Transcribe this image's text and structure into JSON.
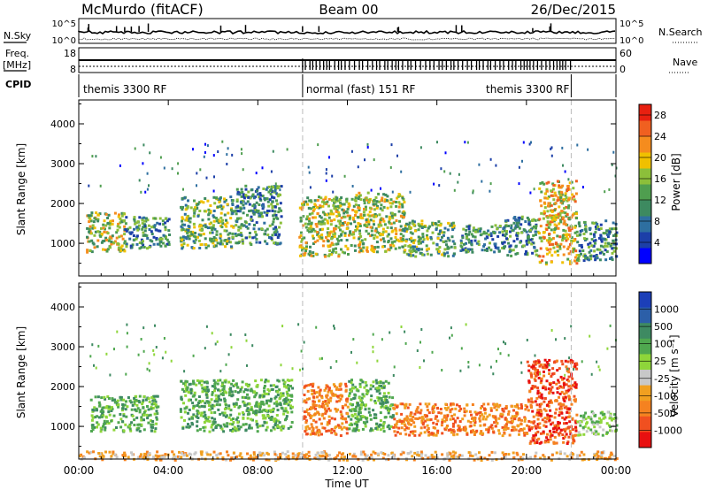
{
  "header": {
    "station": "McMurdo (fitACF)",
    "beam": "Beam 00",
    "date": "26/Dec/2015"
  },
  "side_labels": {
    "nsky": "N.Sky",
    "nsearch": "N.Search",
    "freq_line1": "Freq.",
    "freq_line2": "[MHz]",
    "nave": "Nave",
    "cpid": "CPID",
    "noise_tick_hi": "10^5",
    "noise_tick_lo": "10^0",
    "freq_tick_hi": "18",
    "freq_tick_lo": "8",
    "nave_tick_hi": "60",
    "nave_tick_lo": "0"
  },
  "cpid_segments": [
    {
      "label": "themis 3300 RF",
      "start_h": 0,
      "end_h": 10
    },
    {
      "label": "normal (fast) 151 RF",
      "start_h": 10,
      "end_h": 22
    },
    {
      "label": "themis 3300 RF",
      "start_h": 22,
      "end_h": 24
    }
  ],
  "colors": {
    "power_scale": [
      "#0000ff",
      "#1c3fa8",
      "#2e6fa0",
      "#3d8a60",
      "#4f9e4f",
      "#8cbf3a",
      "#f0c000",
      "#f58c1e",
      "#f06020",
      "#e82010"
    ],
    "velocity_scale": [
      "#1c3fb8",
      "#2c5fa8",
      "#3e8a62",
      "#4fa74f",
      "#8ed63a",
      "#c8c8c8",
      "#f0a020",
      "#f58220",
      "#f05020",
      "#e81010"
    ]
  },
  "chart_data": [
    {
      "type": "heatmap",
      "panel": "power",
      "xlabel": "",
      "ylabel": "Slant Range [km]",
      "x_ticks": [
        "00:00",
        "04:00",
        "08:00",
        "12:00",
        "16:00",
        "20:00",
        "00:00"
      ],
      "y_ticks": [
        1000,
        2000,
        3000,
        4000
      ],
      "xlim_hours": [
        0,
        24
      ],
      "ylim_km": [
        180,
        4600
      ],
      "colorbar": {
        "label": "Power [dB]",
        "ticks": [
          4,
          8,
          12,
          16,
          20,
          24,
          28
        ],
        "range": [
          0,
          30
        ]
      },
      "echo_regions": [
        {
          "t_start": 0.3,
          "t_end": 2.0,
          "r_low": 800,
          "r_high": 1800,
          "level": 16
        },
        {
          "t_start": 2.0,
          "t_end": 4.0,
          "r_low": 900,
          "r_high": 1700,
          "level": 11
        },
        {
          "t_start": 4.5,
          "t_end": 7.0,
          "r_low": 900,
          "r_high": 2200,
          "level": 13
        },
        {
          "t_start": 7.0,
          "t_end": 9.0,
          "r_low": 1000,
          "r_high": 2500,
          "level": 10
        },
        {
          "t_start": 9.8,
          "t_end": 12.2,
          "r_low": 700,
          "r_high": 2200,
          "level": 16
        },
        {
          "t_start": 12.2,
          "t_end": 14.5,
          "r_low": 800,
          "r_high": 2300,
          "level": 15
        },
        {
          "t_start": 14.5,
          "t_end": 16.8,
          "r_low": 700,
          "r_high": 1600,
          "level": 14
        },
        {
          "t_start": 17.0,
          "t_end": 19.0,
          "r_low": 800,
          "r_high": 1500,
          "level": 10
        },
        {
          "t_start": 19.0,
          "t_end": 20.5,
          "r_low": 700,
          "r_high": 1700,
          "level": 9
        },
        {
          "t_start": 20.5,
          "t_end": 22.2,
          "r_low": 500,
          "r_high": 2600,
          "level": 19
        },
        {
          "t_start": 22.2,
          "t_end": 24.0,
          "r_low": 600,
          "r_high": 1600,
          "level": 11
        }
      ]
    },
    {
      "type": "heatmap",
      "panel": "velocity",
      "xlabel": "Time UT",
      "ylabel": "Slant Range [km]",
      "x_ticks": [
        "00:00",
        "04:00",
        "08:00",
        "12:00",
        "16:00",
        "20:00",
        "00:00"
      ],
      "y_ticks": [
        1000,
        2000,
        3000,
        4000
      ],
      "xlim_hours": [
        0,
        24
      ],
      "ylim_km": [
        180,
        4600
      ],
      "colorbar": {
        "label": "Velocity [m s⁻¹]",
        "ticks": [
          "1000",
          "500",
          "100",
          "25",
          "-25",
          "-100",
          "-500",
          "-1000"
        ]
      },
      "echo_regions": [
        {
          "t_start": 0.5,
          "t_end": 3.5,
          "r_low": 900,
          "r_high": 1800,
          "velocity": 120
        },
        {
          "t_start": 4.5,
          "t_end": 9.5,
          "r_low": 900,
          "r_high": 2200,
          "velocity": 150
        },
        {
          "t_start": 10.0,
          "t_end": 12.0,
          "r_low": 800,
          "r_high": 2100,
          "velocity": -400
        },
        {
          "t_start": 12.0,
          "t_end": 14.0,
          "r_low": 900,
          "r_high": 2200,
          "velocity": 200
        },
        {
          "t_start": 14.0,
          "t_end": 16.5,
          "r_low": 800,
          "r_high": 1600,
          "velocity": -300
        },
        {
          "t_start": 16.5,
          "t_end": 20.0,
          "r_low": 800,
          "r_high": 1600,
          "velocity": -450
        },
        {
          "t_start": 20.0,
          "t_end": 22.2,
          "r_low": 600,
          "r_high": 2700,
          "velocity": -600
        },
        {
          "t_start": 22.2,
          "t_end": 24.0,
          "r_low": 800,
          "r_high": 1400,
          "velocity": 60
        },
        {
          "t_start": 0.0,
          "t_end": 24.0,
          "r_low": 180,
          "r_high": 400,
          "velocity": -80
        }
      ]
    }
  ]
}
